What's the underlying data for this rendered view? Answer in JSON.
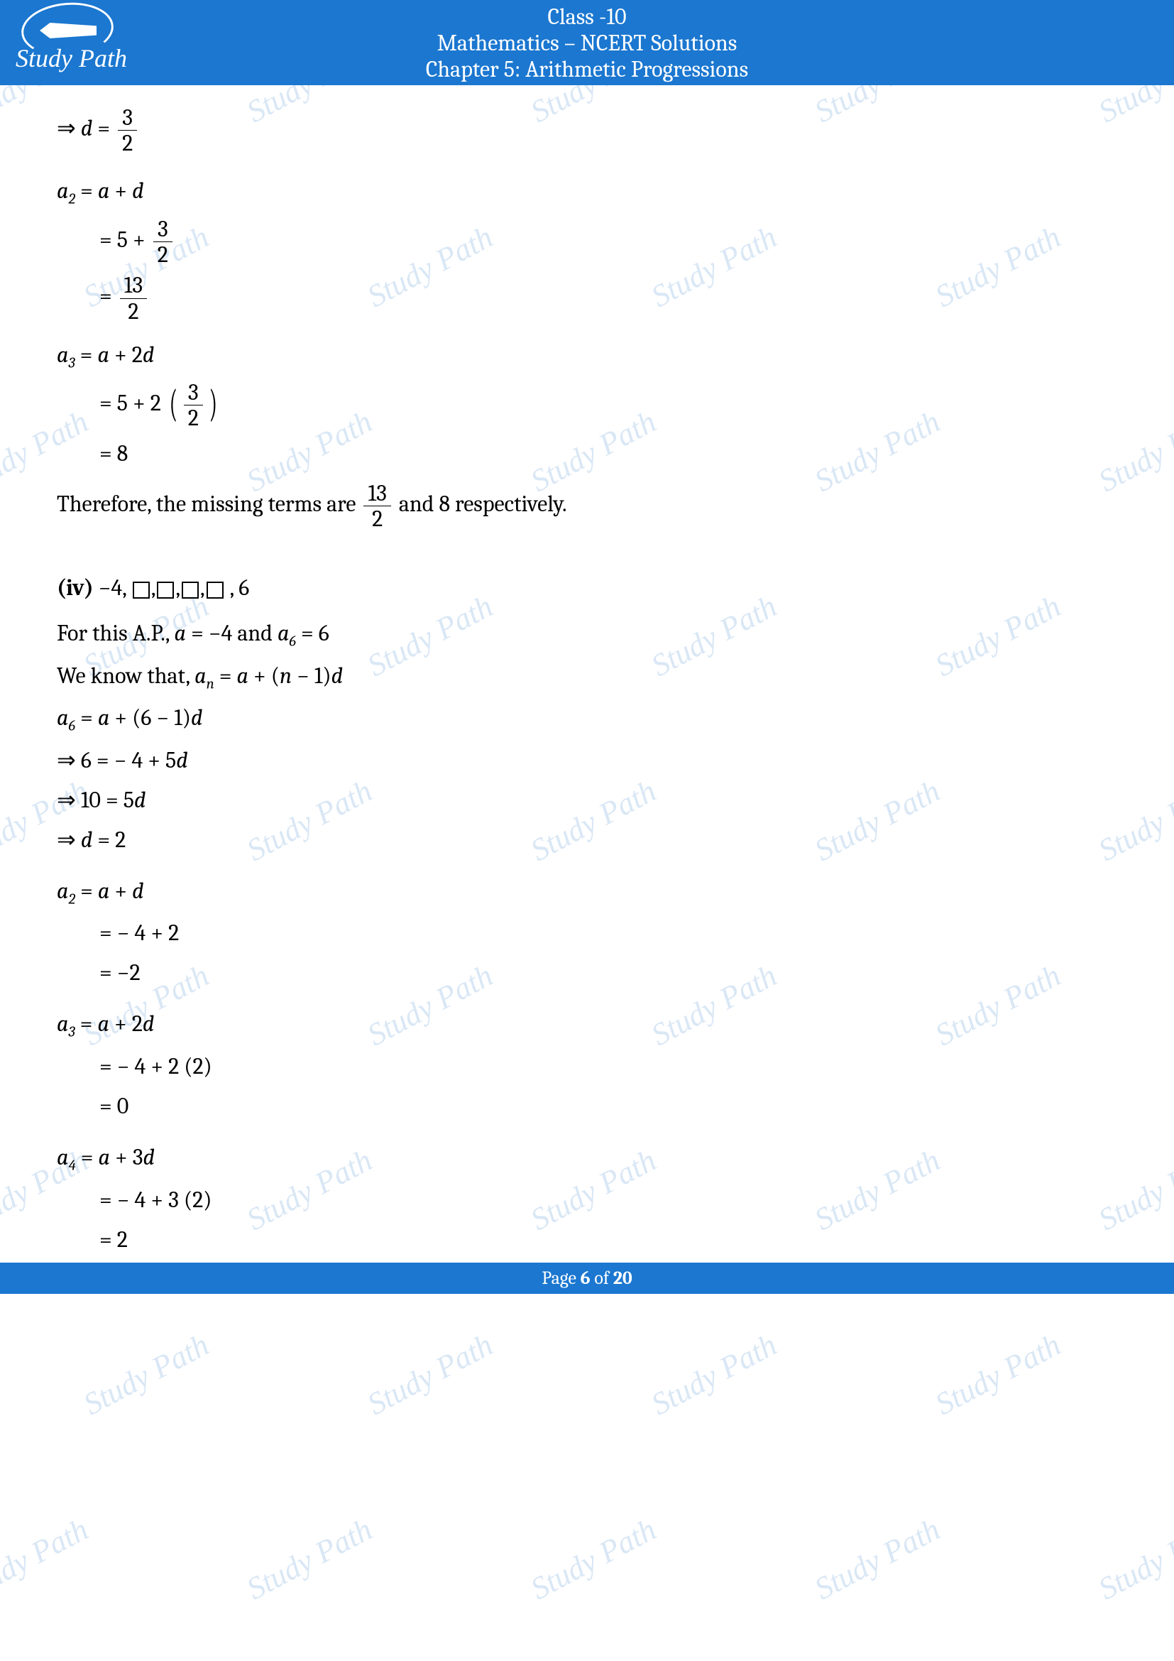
{
  "header": {
    "line1": "Class -10",
    "line2": "Mathematics – NCERT Solutions",
    "line3": "Chapter 5: Arithmetic Progressions",
    "logo_text": "Study Path"
  },
  "footer": {
    "prefix": "Page ",
    "page": "6",
    "mid": " of ",
    "total": "20"
  },
  "watermark_text": "Study Path",
  "colors": {
    "brand": "#1b77d0",
    "text": "#000000",
    "bg": "#ffffff",
    "watermark": "rgba(120,170,220,0.28)"
  },
  "m": {
    "l1a": "⇒ ",
    "l1b": "d",
    "l1c": " = ",
    "l1n": "3",
    "l1d": "2",
    "l2a": "a",
    "l2s": "2",
    "l2b": " = ",
    "l2c": "a",
    "l2d": " + ",
    "l2e": "d",
    "l3a": "= 5 + ",
    "l3n": "3",
    "l3d": "2",
    "l4a": "= ",
    "l4n": "13",
    "l4d": "2",
    "l5a": "a",
    "l5s": "3",
    "l5b": " = ",
    "l5c": "a",
    "l5d": " + 2",
    "l5e": "d",
    "l6a": "= 5 + 2 ",
    "l6n": "3",
    "l6d": "2",
    "l7a": "= 8",
    "l8a": "Therefore, the missing terms are ",
    "l8n": "13",
    "l8d": "2",
    "l8b": " and 8 respectively.",
    "l9a": "(iv) ",
    "l9b": "−4,",
    "l9c": " , 6",
    "l10a": "For this A.P., ",
    "l10b": "a",
    "l10c": " = −4 and ",
    "l10d": "a",
    "l10s": "6",
    "l10e": " = 6",
    "l11a": "We know that, ",
    "l11b": "a",
    "l11s": "n",
    "l11c": " = ",
    "l11d": "a",
    "l11e": " + (",
    "l11f": "n",
    "l11g": " − 1)",
    "l11h": "d",
    "l12a": "a",
    "l12s": "6",
    "l12b": " = ",
    "l12c": "a",
    "l12d": " + (6 − 1)",
    "l12e": "d",
    "l13a": "⇒ 6 = − 4 + 5",
    "l13b": "d",
    "l14a": "⇒ 10 = 5",
    "l14b": "d",
    "l15a": "⇒ ",
    "l15b": "d",
    "l15c": " = 2",
    "l16a": "a",
    "l16s": "2",
    "l16b": " = ",
    "l16c": "a",
    "l16d": " + ",
    "l16e": "d",
    "l17a": "= − 4 + 2",
    "l18a": "= −2",
    "l19a": "a",
    "l19s": "3",
    "l19b": " = ",
    "l19c": "a",
    "l19d": " + 2",
    "l19e": "d",
    "l20a": "= − 4 + 2 (2)",
    "l21a": "= 0",
    "l22a": "a",
    "l22s": "4",
    "l22b": " = ",
    "l22c": "a",
    "l22d": " + 3",
    "l22e": "d",
    "l23a": "= − 4 + 3 (2)",
    "l24a": "= 2"
  }
}
